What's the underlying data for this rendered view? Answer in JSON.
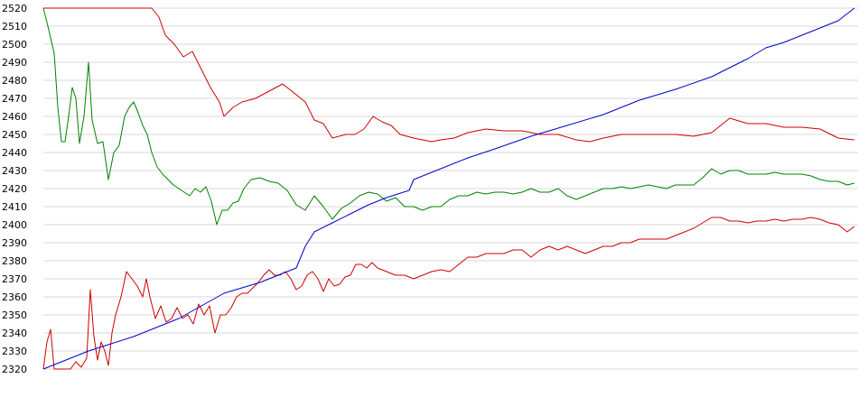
{
  "chart_data": {
    "type": "line",
    "ylim": [
      2320,
      2520
    ],
    "y_ticks": [
      2520,
      2510,
      2500,
      2490,
      2480,
      2470,
      2460,
      2450,
      2440,
      2430,
      2420,
      2410,
      2400,
      2390,
      2380,
      2370,
      2360,
      2350,
      2340,
      2330,
      2320
    ],
    "grid": true,
    "legend": "none",
    "series": [
      {
        "color": "#cc0000",
        "points": [
          [
            0,
            2520
          ],
          [
            30,
            2520
          ],
          [
            60,
            2520
          ],
          [
            90,
            2520
          ],
          [
            110,
            2520
          ],
          [
            120,
            2520
          ],
          [
            128,
            2515
          ],
          [
            135,
            2505
          ],
          [
            145,
            2500
          ],
          [
            155,
            2493
          ],
          [
            165,
            2496
          ],
          [
            175,
            2486
          ],
          [
            185,
            2476
          ],
          [
            195,
            2468
          ],
          [
            200,
            2460
          ],
          [
            210,
            2465
          ],
          [
            220,
            2468
          ],
          [
            235,
            2470
          ],
          [
            250,
            2474
          ],
          [
            265,
            2478
          ],
          [
            280,
            2472
          ],
          [
            290,
            2468
          ],
          [
            300,
            2458
          ],
          [
            310,
            2456
          ],
          [
            320,
            2448
          ],
          [
            335,
            2450
          ],
          [
            345,
            2450
          ],
          [
            355,
            2453
          ],
          [
            365,
            2460
          ],
          [
            375,
            2457
          ],
          [
            385,
            2455
          ],
          [
            395,
            2450
          ],
          [
            410,
            2448
          ],
          [
            420,
            2447
          ],
          [
            430,
            2446
          ],
          [
            440,
            2447
          ],
          [
            455,
            2448
          ],
          [
            470,
            2451
          ],
          [
            490,
            2453
          ],
          [
            510,
            2452
          ],
          [
            530,
            2452
          ],
          [
            550,
            2450
          ],
          [
            570,
            2450
          ],
          [
            590,
            2447
          ],
          [
            605,
            2446
          ],
          [
            620,
            2448
          ],
          [
            640,
            2450
          ],
          [
            660,
            2450
          ],
          [
            680,
            2450
          ],
          [
            700,
            2450
          ],
          [
            720,
            2449
          ],
          [
            740,
            2451
          ],
          [
            760,
            2459
          ],
          [
            780,
            2456
          ],
          [
            800,
            2456
          ],
          [
            820,
            2454
          ],
          [
            840,
            2454
          ],
          [
            860,
            2453
          ],
          [
            880,
            2448
          ],
          [
            898,
            2447
          ]
        ]
      },
      {
        "color": "#008000",
        "points": [
          [
            0,
            2520
          ],
          [
            5,
            2510
          ],
          [
            12,
            2495
          ],
          [
            16,
            2465
          ],
          [
            20,
            2446
          ],
          [
            24,
            2446
          ],
          [
            28,
            2460
          ],
          [
            32,
            2476
          ],
          [
            36,
            2470
          ],
          [
            40,
            2445
          ],
          [
            45,
            2460
          ],
          [
            50,
            2490
          ],
          [
            54,
            2458
          ],
          [
            60,
            2445
          ],
          [
            66,
            2446
          ],
          [
            72,
            2425
          ],
          [
            78,
            2440
          ],
          [
            84,
            2444
          ],
          [
            90,
            2460
          ],
          [
            95,
            2465
          ],
          [
            100,
            2468
          ],
          [
            105,
            2462
          ],
          [
            110,
            2455
          ],
          [
            115,
            2450
          ],
          [
            120,
            2440
          ],
          [
            126,
            2432
          ],
          [
            132,
            2428
          ],
          [
            138,
            2425
          ],
          [
            144,
            2422
          ],
          [
            150,
            2420
          ],
          [
            156,
            2418
          ],
          [
            162,
            2416
          ],
          [
            168,
            2420
          ],
          [
            174,
            2418
          ],
          [
            180,
            2421
          ],
          [
            186,
            2413
          ],
          [
            192,
            2400
          ],
          [
            198,
            2408
          ],
          [
            204,
            2408
          ],
          [
            210,
            2412
          ],
          [
            216,
            2413
          ],
          [
            222,
            2420
          ],
          [
            230,
            2425
          ],
          [
            240,
            2426
          ],
          [
            250,
            2424
          ],
          [
            260,
            2423
          ],
          [
            270,
            2419
          ],
          [
            280,
            2411
          ],
          [
            290,
            2408
          ],
          [
            300,
            2416
          ],
          [
            310,
            2410
          ],
          [
            320,
            2403
          ],
          [
            330,
            2409
          ],
          [
            340,
            2412
          ],
          [
            350,
            2416
          ],
          [
            360,
            2418
          ],
          [
            370,
            2417
          ],
          [
            380,
            2413
          ],
          [
            390,
            2415
          ],
          [
            400,
            2410
          ],
          [
            410,
            2410
          ],
          [
            420,
            2408
          ],
          [
            430,
            2410
          ],
          [
            440,
            2410
          ],
          [
            450,
            2414
          ],
          [
            460,
            2416
          ],
          [
            470,
            2416
          ],
          [
            480,
            2418
          ],
          [
            490,
            2417
          ],
          [
            500,
            2418
          ],
          [
            510,
            2418
          ],
          [
            520,
            2417
          ],
          [
            530,
            2418
          ],
          [
            540,
            2420
          ],
          [
            550,
            2418
          ],
          [
            560,
            2418
          ],
          [
            570,
            2420
          ],
          [
            580,
            2416
          ],
          [
            590,
            2414
          ],
          [
            600,
            2416
          ],
          [
            610,
            2418
          ],
          [
            620,
            2420
          ],
          [
            630,
            2420
          ],
          [
            640,
            2421
          ],
          [
            650,
            2420
          ],
          [
            660,
            2421
          ],
          [
            670,
            2422
          ],
          [
            680,
            2421
          ],
          [
            690,
            2420
          ],
          [
            700,
            2422
          ],
          [
            710,
            2422
          ],
          [
            720,
            2422
          ],
          [
            730,
            2426
          ],
          [
            740,
            2431
          ],
          [
            750,
            2428
          ],
          [
            760,
            2430
          ],
          [
            770,
            2430
          ],
          [
            780,
            2428
          ],
          [
            790,
            2428
          ],
          [
            800,
            2428
          ],
          [
            810,
            2429
          ],
          [
            820,
            2428
          ],
          [
            830,
            2428
          ],
          [
            840,
            2428
          ],
          [
            850,
            2427
          ],
          [
            860,
            2425
          ],
          [
            870,
            2424
          ],
          [
            880,
            2424
          ],
          [
            890,
            2422
          ],
          [
            898,
            2423
          ]
        ]
      },
      {
        "color": "#cc0000",
        "points": [
          [
            0,
            2320
          ],
          [
            4,
            2335
          ],
          [
            8,
            2342
          ],
          [
            12,
            2320
          ],
          [
            18,
            2320
          ],
          [
            24,
            2320
          ],
          [
            30,
            2320
          ],
          [
            36,
            2324
          ],
          [
            42,
            2321
          ],
          [
            48,
            2326
          ],
          [
            52,
            2364
          ],
          [
            56,
            2338
          ],
          [
            60,
            2325
          ],
          [
            64,
            2335
          ],
          [
            68,
            2330
          ],
          [
            72,
            2322
          ],
          [
            76,
            2340
          ],
          [
            80,
            2350
          ],
          [
            86,
            2360
          ],
          [
            92,
            2374
          ],
          [
            98,
            2370
          ],
          [
            104,
            2366
          ],
          [
            110,
            2360
          ],
          [
            114,
            2370
          ],
          [
            118,
            2360
          ],
          [
            124,
            2348
          ],
          [
            130,
            2355
          ],
          [
            136,
            2346
          ],
          [
            142,
            2348
          ],
          [
            148,
            2354
          ],
          [
            154,
            2348
          ],
          [
            160,
            2350
          ],
          [
            166,
            2345
          ],
          [
            172,
            2356
          ],
          [
            178,
            2350
          ],
          [
            184,
            2355
          ],
          [
            190,
            2340
          ],
          [
            196,
            2350
          ],
          [
            202,
            2350
          ],
          [
            208,
            2354
          ],
          [
            214,
            2360
          ],
          [
            220,
            2362
          ],
          [
            226,
            2362
          ],
          [
            232,
            2365
          ],
          [
            238,
            2368
          ],
          [
            244,
            2372
          ],
          [
            250,
            2375
          ],
          [
            256,
            2372
          ],
          [
            262,
            2372
          ],
          [
            268,
            2374
          ],
          [
            274,
            2370
          ],
          [
            280,
            2364
          ],
          [
            286,
            2366
          ],
          [
            292,
            2372
          ],
          [
            298,
            2374
          ],
          [
            304,
            2370
          ],
          [
            310,
            2363
          ],
          [
            316,
            2370
          ],
          [
            322,
            2366
          ],
          [
            328,
            2367
          ],
          [
            334,
            2371
          ],
          [
            340,
            2372
          ],
          [
            346,
            2378
          ],
          [
            352,
            2378
          ],
          [
            358,
            2376
          ],
          [
            364,
            2379
          ],
          [
            370,
            2376
          ],
          [
            380,
            2374
          ],
          [
            390,
            2372
          ],
          [
            400,
            2372
          ],
          [
            410,
            2370
          ],
          [
            420,
            2372
          ],
          [
            430,
            2374
          ],
          [
            440,
            2375
          ],
          [
            450,
            2374
          ],
          [
            460,
            2378
          ],
          [
            470,
            2382
          ],
          [
            480,
            2382
          ],
          [
            490,
            2384
          ],
          [
            500,
            2384
          ],
          [
            510,
            2384
          ],
          [
            520,
            2386
          ],
          [
            530,
            2386
          ],
          [
            540,
            2382
          ],
          [
            550,
            2386
          ],
          [
            560,
            2388
          ],
          [
            570,
            2386
          ],
          [
            580,
            2388
          ],
          [
            590,
            2386
          ],
          [
            600,
            2384
          ],
          [
            610,
            2386
          ],
          [
            620,
            2388
          ],
          [
            630,
            2388
          ],
          [
            640,
            2390
          ],
          [
            650,
            2390
          ],
          [
            660,
            2392
          ],
          [
            670,
            2392
          ],
          [
            680,
            2392
          ],
          [
            690,
            2392
          ],
          [
            700,
            2394
          ],
          [
            710,
            2396
          ],
          [
            720,
            2398
          ],
          [
            730,
            2401
          ],
          [
            740,
            2404
          ],
          [
            750,
            2404
          ],
          [
            760,
            2402
          ],
          [
            770,
            2402
          ],
          [
            780,
            2401
          ],
          [
            790,
            2402
          ],
          [
            800,
            2402
          ],
          [
            810,
            2403
          ],
          [
            820,
            2402
          ],
          [
            830,
            2403
          ],
          [
            840,
            2403
          ],
          [
            850,
            2404
          ],
          [
            860,
            2403
          ],
          [
            870,
            2401
          ],
          [
            880,
            2400
          ],
          [
            890,
            2396
          ],
          [
            898,
            2399
          ]
        ]
      },
      {
        "color": "#0000cc",
        "points": [
          [
            0,
            2320
          ],
          [
            50,
            2330
          ],
          [
            100,
            2338
          ],
          [
            150,
            2348
          ],
          [
            200,
            2362
          ],
          [
            240,
            2368
          ],
          [
            270,
            2374
          ],
          [
            280,
            2376
          ],
          [
            290,
            2388
          ],
          [
            300,
            2396
          ],
          [
            320,
            2401
          ],
          [
            340,
            2406
          ],
          [
            360,
            2411
          ],
          [
            380,
            2415
          ],
          [
            405,
            2419
          ],
          [
            410,
            2425
          ],
          [
            440,
            2431
          ],
          [
            470,
            2437
          ],
          [
            500,
            2442
          ],
          [
            540,
            2449
          ],
          [
            580,
            2455
          ],
          [
            620,
            2461
          ],
          [
            660,
            2469
          ],
          [
            700,
            2475
          ],
          [
            740,
            2482
          ],
          [
            780,
            2492
          ],
          [
            800,
            2498
          ],
          [
            820,
            2501
          ],
          [
            850,
            2507
          ],
          [
            880,
            2513
          ],
          [
            898,
            2520
          ]
        ]
      }
    ]
  }
}
